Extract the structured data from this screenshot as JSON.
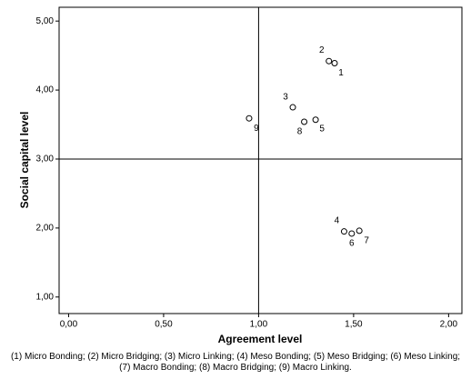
{
  "chart_data": {
    "type": "scatter",
    "x_label": "Agreement level",
    "y_label": "Social capital level",
    "caption": "(1) Micro Bonding; (2) Micro Bridging; (3) Micro Linking; (4) Meso Bonding; (5) Meso Bridging; (6) Meso Linking; (7) Macro Bonding; (8) Macro Bridging; (9) Macro Linking.",
    "x": [
      1.4,
      1.37,
      1.18,
      1.45,
      1.3,
      1.49,
      1.53,
      1.24,
      0.95
    ],
    "values": [
      4.39,
      4.42,
      3.75,
      1.95,
      3.57,
      1.92,
      1.96,
      3.54,
      3.59
    ],
    "point_labels": [
      "1",
      "2",
      "3",
      "4",
      "5",
      "6",
      "7",
      "8",
      "9"
    ],
    "xlim": [
      -0.05,
      2.07
    ],
    "ylim": [
      0.76,
      5.2
    ],
    "xticks": [
      {
        "value": 0,
        "label": "0,00"
      },
      {
        "value": 0.5,
        "label": "0,50"
      },
      {
        "value": 1,
        "label": "1,00"
      },
      {
        "value": 1.5,
        "label": "1,50"
      },
      {
        "value": 2,
        "label": "2,00"
      }
    ],
    "yticks": [
      {
        "value": 1,
        "label": "1,00"
      },
      {
        "value": 2,
        "label": "2,00"
      },
      {
        "value": 3,
        "label": "3,00"
      },
      {
        "value": 4,
        "label": "4,00"
      },
      {
        "value": 5,
        "label": "5,00"
      }
    ],
    "x_reference": 1,
    "y_reference": 3,
    "marker_color": "#000000"
  }
}
